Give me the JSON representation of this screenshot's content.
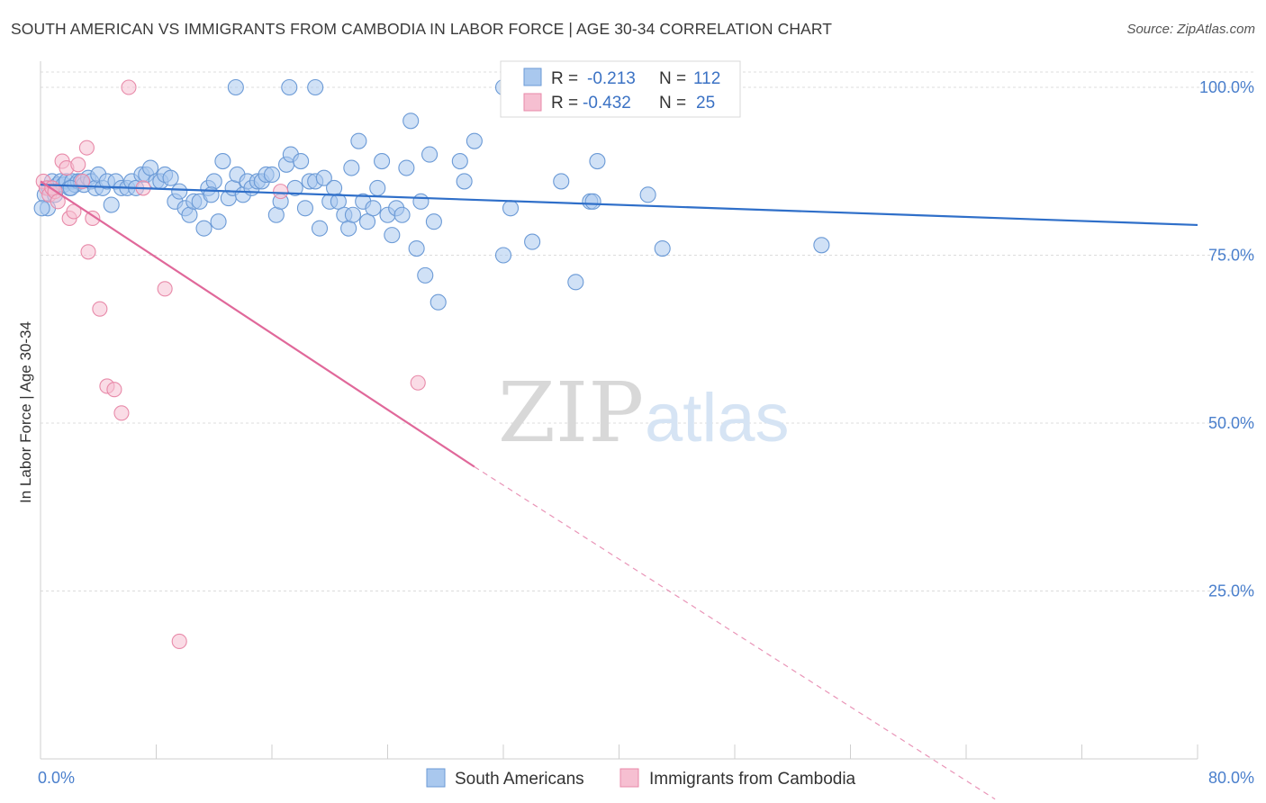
{
  "title": "SOUTH AMERICAN VS IMMIGRANTS FROM CAMBODIA IN LABOR FORCE | AGE 30-34 CORRELATION CHART",
  "source": "Source: ZipAtlas.com",
  "watermark": {
    "zip": "ZIP",
    "atlas": "atlas"
  },
  "colors": {
    "blue_fill": "#a9c8ee",
    "blue_stroke": "#6b9ad6",
    "blue_line": "#2f6fc9",
    "pink_fill": "#f6bfd1",
    "pink_stroke": "#e88aa9",
    "pink_line": "#e0689a",
    "tick_text": "#4a7fcc",
    "grid": "#dcdcdc"
  },
  "legend": {
    "r_label": "R =",
    "n_label": "N =",
    "rows": [
      {
        "r": "-0.213",
        "n": "112",
        "color": "blue"
      },
      {
        "r": "-0.432",
        "n": "25",
        "color": "pink"
      }
    ]
  },
  "chart_data": {
    "type": "scatter",
    "title": "SOUTH AMERICAN VS IMMIGRANTS FROM CAMBODIA IN LABOR FORCE | AGE 30-34 CORRELATION CHART",
    "xlabel": "",
    "ylabel": "In Labor Force | Age 30-34",
    "xlim": [
      0,
      80
    ],
    "ylim": [
      0,
      105
    ],
    "x_tick_labels": [
      {
        "value": 0,
        "label": "0.0%"
      },
      {
        "value": 80,
        "label": "80.0%"
      }
    ],
    "y_tick_labels": [
      {
        "value": 100,
        "label": "100.0%"
      },
      {
        "value": 75,
        "label": "75.0%"
      },
      {
        "value": 50,
        "label": "50.0%"
      },
      {
        "value": 25,
        "label": "25.0%"
      }
    ],
    "grid": true,
    "legend_position": "top-center",
    "series": [
      {
        "name": "South Americans",
        "color": "blue",
        "points": [
          [
            0.3,
            84
          ],
          [
            0.5,
            82
          ],
          [
            0.6,
            85
          ],
          [
            0.8,
            86
          ],
          [
            1.0,
            84
          ],
          [
            1.2,
            85.5
          ],
          [
            1.4,
            86
          ],
          [
            1.6,
            85.5
          ],
          [
            1.8,
            86
          ],
          [
            2.0,
            85
          ],
          [
            2.2,
            86
          ],
          [
            2.4,
            85.5
          ],
          [
            2.6,
            86
          ],
          [
            2.8,
            86
          ],
          [
            3.0,
            85.5
          ],
          [
            3.3,
            86.5
          ],
          [
            3.5,
            86
          ],
          [
            3.8,
            85
          ],
          [
            4.0,
            87
          ],
          [
            4.3,
            85
          ],
          [
            4.6,
            86
          ],
          [
            4.9,
            82.5
          ],
          [
            5.2,
            86
          ],
          [
            5.6,
            85
          ],
          [
            6.0,
            85
          ],
          [
            6.3,
            86
          ],
          [
            6.6,
            85
          ],
          [
            7.0,
            87
          ],
          [
            7.3,
            87
          ],
          [
            7.6,
            88
          ],
          [
            8.0,
            86
          ],
          [
            8.3,
            86
          ],
          [
            8.6,
            87
          ],
          [
            9.0,
            86.5
          ],
          [
            9.3,
            83
          ],
          [
            9.6,
            84.5
          ],
          [
            10.0,
            82
          ],
          [
            10.3,
            81
          ],
          [
            10.6,
            83
          ],
          [
            11.0,
            83
          ],
          [
            11.3,
            79
          ],
          [
            11.6,
            85
          ],
          [
            12.0,
            86
          ],
          [
            12.3,
            80
          ],
          [
            12.6,
            89
          ],
          [
            13.0,
            83.5
          ],
          [
            13.3,
            85
          ],
          [
            13.6,
            87
          ],
          [
            14.0,
            84
          ],
          [
            14.3,
            86
          ],
          [
            14.6,
            85
          ],
          [
            15.0,
            86
          ],
          [
            15.3,
            86
          ],
          [
            15.6,
            87
          ],
          [
            16.0,
            87
          ],
          [
            16.3,
            81
          ],
          [
            16.6,
            83
          ],
          [
            17.0,
            88.5
          ],
          [
            17.3,
            90
          ],
          [
            17.6,
            85
          ],
          [
            18.0,
            89
          ],
          [
            18.3,
            82
          ],
          [
            18.6,
            86
          ],
          [
            19.0,
            86
          ],
          [
            19.3,
            79
          ],
          [
            19.6,
            86.5
          ],
          [
            20.0,
            83
          ],
          [
            20.3,
            85
          ],
          [
            20.6,
            83
          ],
          [
            21.0,
            81
          ],
          [
            21.3,
            79
          ],
          [
            21.6,
            81
          ],
          [
            22.0,
            92
          ],
          [
            22.3,
            83
          ],
          [
            22.6,
            80
          ],
          [
            23.0,
            82
          ],
          [
            23.3,
            85
          ],
          [
            23.6,
            89
          ],
          [
            24.0,
            81
          ],
          [
            24.3,
            78
          ],
          [
            24.6,
            82
          ],
          [
            25.0,
            81
          ],
          [
            25.3,
            88
          ],
          [
            25.6,
            95
          ],
          [
            26.0,
            76
          ],
          [
            26.3,
            83
          ],
          [
            26.6,
            72
          ],
          [
            26.9,
            90
          ],
          [
            27.2,
            80
          ],
          [
            27.5,
            68
          ],
          [
            29.0,
            89
          ],
          [
            29.3,
            86
          ],
          [
            30.0,
            92
          ],
          [
            32.0,
            75
          ],
          [
            32.5,
            82
          ],
          [
            34.0,
            77
          ],
          [
            36.0,
            86
          ],
          [
            37.0,
            71
          ],
          [
            38.0,
            83
          ],
          [
            38.2,
            83
          ],
          [
            38.5,
            89
          ],
          [
            42.0,
            84
          ],
          [
            43.0,
            76
          ],
          [
            54.0,
            76.5
          ],
          [
            19.0,
            100
          ],
          [
            13.5,
            100
          ],
          [
            32.0,
            100
          ],
          [
            17.2,
            100
          ],
          [
            21.5,
            88
          ],
          [
            11.8,
            84
          ],
          [
            2.1,
            85
          ],
          [
            0.1,
            82
          ]
        ]
      },
      {
        "name": "Immigrants from Cambodia",
        "color": "pink",
        "points": [
          [
            0.2,
            86
          ],
          [
            0.4,
            85
          ],
          [
            0.6,
            84
          ],
          [
            0.8,
            85
          ],
          [
            1.0,
            84.5
          ],
          [
            1.2,
            83
          ],
          [
            1.5,
            89
          ],
          [
            1.8,
            88
          ],
          [
            2.0,
            80.5
          ],
          [
            2.3,
            81.5
          ],
          [
            2.6,
            88.5
          ],
          [
            2.9,
            86
          ],
          [
            3.2,
            91
          ],
          [
            3.6,
            80.5
          ],
          [
            4.1,
            67
          ],
          [
            4.6,
            55.5
          ],
          [
            5.1,
            55
          ],
          [
            5.6,
            51.5
          ],
          [
            6.1,
            100
          ],
          [
            7.1,
            85
          ],
          [
            8.6,
            70
          ],
          [
            9.6,
            17.5
          ],
          [
            16.6,
            84.5
          ],
          [
            26.1,
            56
          ],
          [
            3.3,
            75.5
          ]
        ]
      }
    ],
    "trend_lines": [
      {
        "series": "South Americans",
        "x": [
          0,
          80
        ],
        "y": [
          85.5,
          79.5
        ]
      },
      {
        "series": "Immigrants from Cambodia",
        "solid_x": [
          0,
          30
        ],
        "solid_y": [
          86,
          43.5
        ],
        "dashed_x": [
          30,
          66
        ],
        "dashed_y": [
          43.5,
          -6
        ]
      }
    ]
  }
}
